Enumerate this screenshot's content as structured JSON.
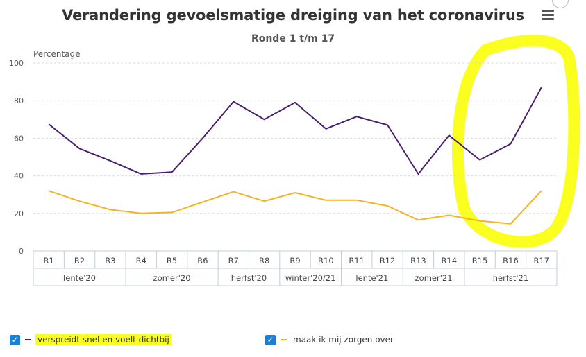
{
  "chart_data": {
    "type": "line",
    "title": "Verandering gevoelsmatige dreiging van het coronavirus",
    "subtitle": "Ronde 1 t/m 17",
    "ylabel": "Percentage",
    "ylim": [
      0,
      100
    ],
    "yticks": [
      0,
      20,
      40,
      60,
      80,
      100
    ],
    "grid": true,
    "categories": [
      "R1",
      "R2",
      "R3",
      "R4",
      "R5",
      "R6",
      "R7",
      "R8",
      "R9",
      "R10",
      "R11",
      "R12",
      "R13",
      "R14",
      "R15",
      "R16",
      "R17"
    ],
    "groups": [
      {
        "label": "lente'20",
        "span": 3
      },
      {
        "label": "zomer'20",
        "span": 3
      },
      {
        "label": "herfst'20",
        "span": 2
      },
      {
        "label": "winter'20/21",
        "span": 2
      },
      {
        "label": "lente'21",
        "span": 2
      },
      {
        "label": "zomer'21",
        "span": 2
      },
      {
        "label": "herfst'21",
        "span": 3
      }
    ],
    "series": [
      {
        "name": "verspreidt snel en voelt dichtbij",
        "color": "#4a1e6e",
        "values": [
          67.5,
          54.5,
          48,
          41,
          42,
          60,
          79.5,
          70,
          79,
          65,
          71.5,
          67,
          41,
          61.5,
          48.5,
          57,
          87
        ]
      },
      {
        "name": "maak ik mij zorgen over",
        "color": "#f5b324",
        "values": [
          32,
          26.5,
          22,
          20,
          20.5,
          26,
          31.5,
          26.5,
          31,
          27,
          27,
          24,
          16.5,
          19,
          16,
          14.5,
          32
        ]
      }
    ],
    "legend_position": "bottom",
    "highlight_color": "#fbff1f"
  },
  "ui": {
    "checkmark": "✓"
  }
}
